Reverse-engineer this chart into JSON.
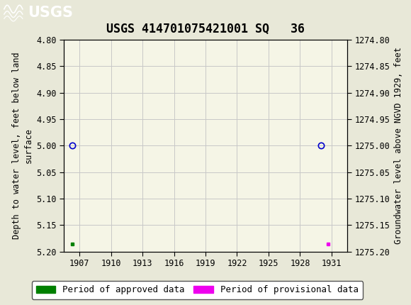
{
  "title": "USGS 414701075421001 SQ   36",
  "ylabel_left": "Depth to water level, feet below land\nsurface",
  "ylabel_right": "Groundwater level above NGVD 1929, feet",
  "ylim_left": [
    4.8,
    5.2
  ],
  "ylim_right_top": 1275.2,
  "ylim_right_bottom": 1274.8,
  "xlim": [
    1905.5,
    1932.5
  ],
  "yticks_left": [
    4.8,
    4.85,
    4.9,
    4.95,
    5.0,
    5.05,
    5.1,
    5.15,
    5.2
  ],
  "yticks_right": [
    1275.2,
    1275.15,
    1275.1,
    1275.05,
    1275.0,
    1274.95,
    1274.9,
    1274.85,
    1274.8
  ],
  "ytick_labels_right": [
    "1275.20",
    "1275.15",
    "1275.10",
    "1275.05",
    "1275.00",
    "1274.95",
    "1274.90",
    "1274.85",
    "1274.80"
  ],
  "xticks": [
    1907,
    1910,
    1913,
    1916,
    1919,
    1922,
    1925,
    1928,
    1931
  ],
  "approved_sq_x": [
    1906.3
  ],
  "approved_sq_y": [
    5.185
  ],
  "provisional_sq_x": [
    1930.7
  ],
  "provisional_sq_y": [
    5.185
  ],
  "approved_open_x": [
    1906.3
  ],
  "approved_open_y": [
    5.0
  ],
  "provisional_open_x": [
    1930.0
  ],
  "provisional_open_y": [
    5.0
  ],
  "approved_color": "#008000",
  "provisional_color": "#ee00ee",
  "open_circle_color": "#0000cc",
  "plot_bg_color": "#f5f5e6",
  "fig_bg_color": "#e8e8d8",
  "header_color": "#1a6b3c",
  "grid_color": "#c8c8c8",
  "title_fontsize": 12,
  "axis_label_fontsize": 8.5,
  "tick_fontsize": 8.5,
  "legend_fontsize": 9
}
